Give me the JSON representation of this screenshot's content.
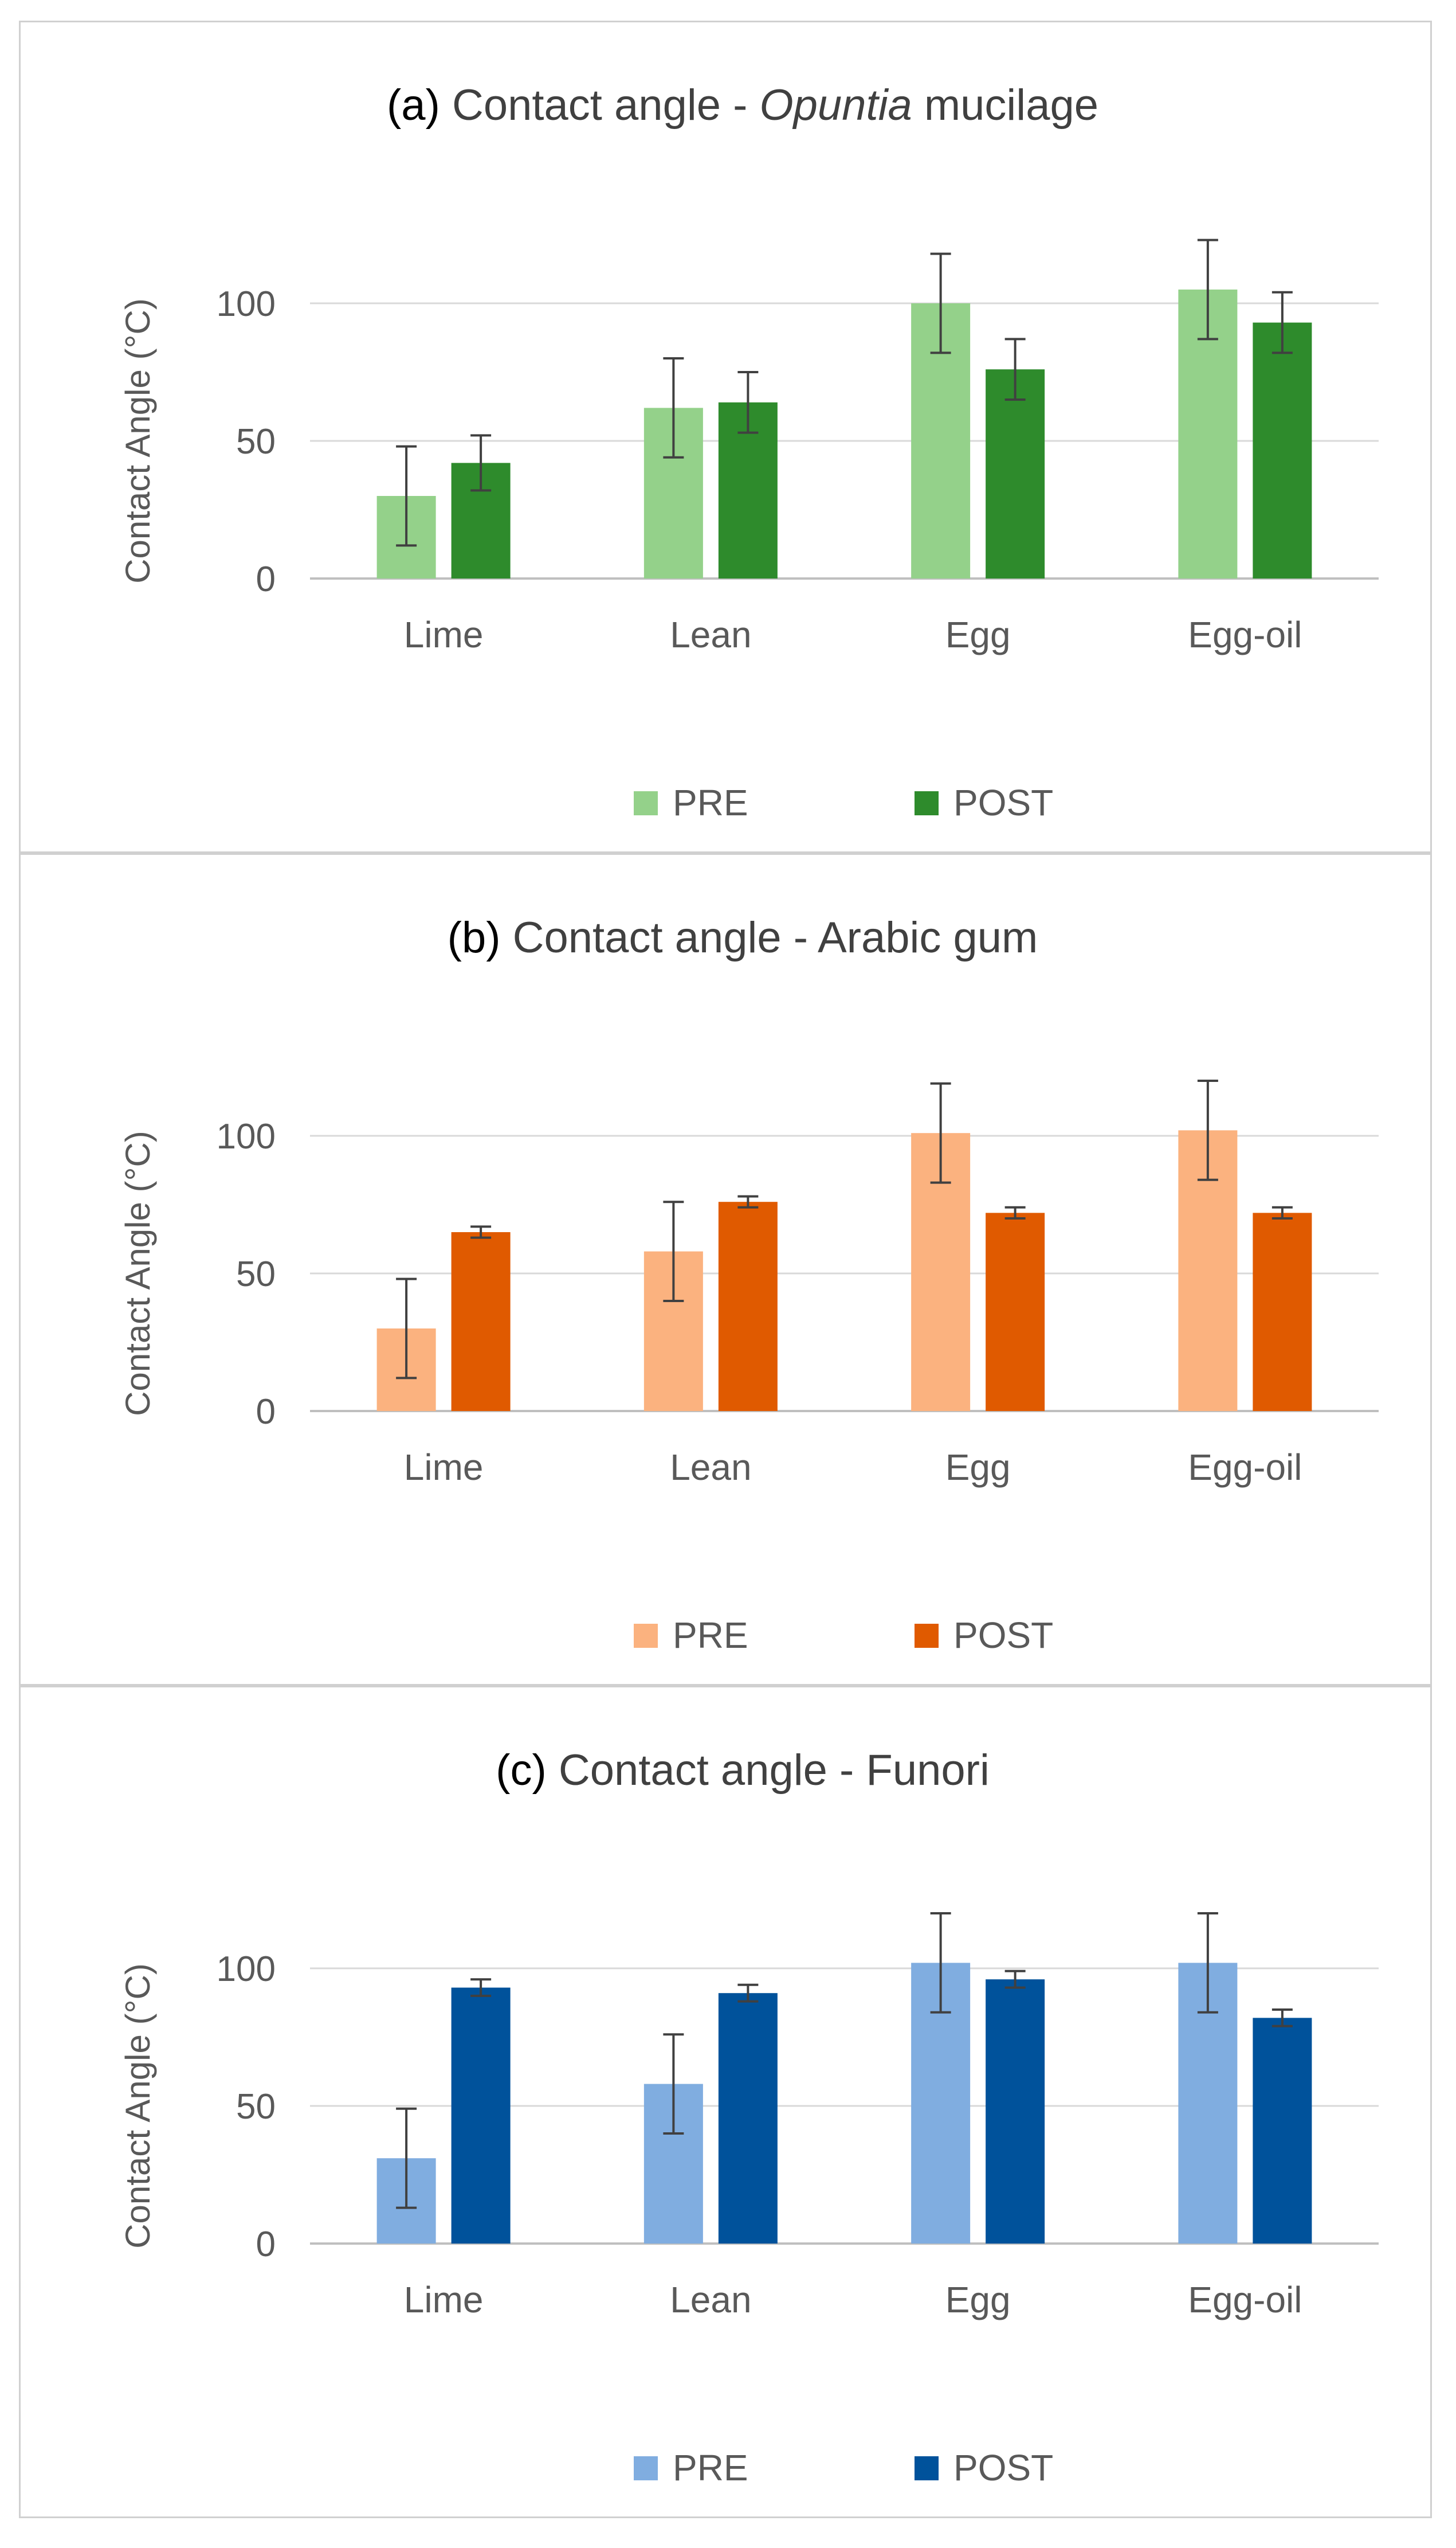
{
  "chart_data": [
    {
      "type": "bar",
      "panel_label": "(a)",
      "title_prefix": "Contact angle -",
      "title_italic": "Opuntia",
      "title_suffix": "mucilage",
      "ylabel": "Contact Angle (°C)",
      "xlabel": "",
      "ylim": [
        0,
        100
      ],
      "yticks": [
        0,
        50,
        100
      ],
      "categories": [
        "Lime",
        "Lean",
        "Egg",
        "Egg-oil"
      ],
      "series": [
        {
          "name": "PRE",
          "color": "#94d18a",
          "values": [
            30,
            62,
            100,
            105
          ],
          "errors": [
            18,
            18,
            18,
            18
          ]
        },
        {
          "name": "POST",
          "color": "#2e8b2c",
          "values": [
            42,
            64,
            76,
            93
          ],
          "errors": [
            10,
            11,
            11,
            11
          ]
        }
      ],
      "legend_position": "bottom",
      "grid": true
    },
    {
      "type": "bar",
      "panel_label": "(b)",
      "title_prefix": "Contact angle - Arabic gum",
      "title_italic": "",
      "title_suffix": "",
      "ylabel": "Contact Angle (°C)",
      "xlabel": "",
      "ylim": [
        0,
        100
      ],
      "yticks": [
        0,
        50,
        100
      ],
      "categories": [
        "Lime",
        "Lean",
        "Egg",
        "Egg-oil"
      ],
      "series": [
        {
          "name": "PRE",
          "color": "#fbb27f",
          "values": [
            30,
            58,
            101,
            102
          ],
          "errors": [
            18,
            18,
            18,
            18
          ]
        },
        {
          "name": "POST",
          "color": "#e05a00",
          "values": [
            65,
            76,
            72,
            72
          ],
          "errors": [
            2,
            2,
            2,
            2
          ]
        }
      ],
      "legend_position": "bottom",
      "grid": true
    },
    {
      "type": "bar",
      "panel_label": "(c)",
      "title_prefix": "Contact angle - Funori",
      "title_italic": "",
      "title_suffix": "",
      "ylabel": "Contact Angle (°C)",
      "xlabel": "",
      "ylim": [
        0,
        100
      ],
      "yticks": [
        0,
        50,
        100
      ],
      "categories": [
        "Lime",
        "Lean",
        "Egg",
        "Egg-oil"
      ],
      "series": [
        {
          "name": "PRE",
          "color": "#80ade0",
          "values": [
            31,
            58,
            102,
            102
          ],
          "errors": [
            18,
            18,
            18,
            18
          ]
        },
        {
          "name": "POST",
          "color": "#00529b",
          "values": [
            93,
            91,
            96,
            82
          ],
          "errors": [
            3,
            3,
            3,
            3
          ]
        }
      ],
      "legend_position": "bottom",
      "grid": true
    }
  ]
}
